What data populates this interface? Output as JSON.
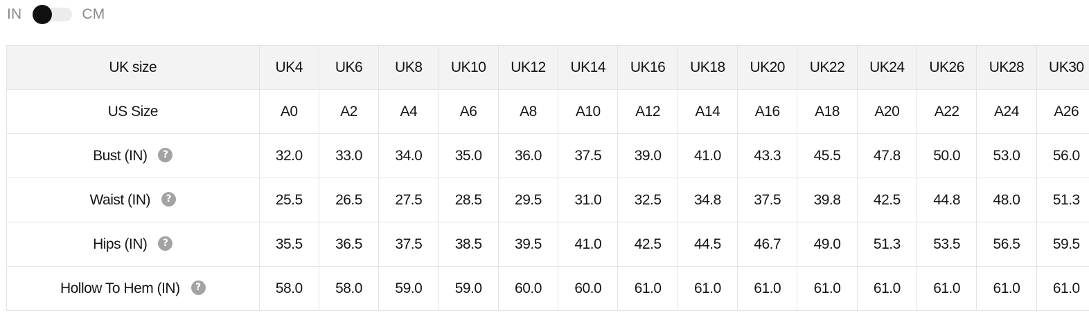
{
  "unit_toggle": {
    "left_label": "IN",
    "right_label": "CM",
    "selected": "IN"
  },
  "table": {
    "header": {
      "label": "UK size",
      "values": [
        "UK4",
        "UK6",
        "UK8",
        "UK10",
        "UK12",
        "UK14",
        "UK16",
        "UK18",
        "UK20",
        "UK22",
        "UK24",
        "UK26",
        "UK28",
        "UK30"
      ]
    },
    "rows": [
      {
        "key": "us-size",
        "label": "US Size",
        "help": false,
        "values": [
          "A0",
          "A2",
          "A4",
          "A6",
          "A8",
          "A10",
          "A12",
          "A14",
          "A16",
          "A18",
          "A20",
          "A22",
          "A24",
          "A26"
        ]
      },
      {
        "key": "bust",
        "label": "Bust (IN)",
        "help": true,
        "values": [
          "32.0",
          "33.0",
          "34.0",
          "35.0",
          "36.0",
          "37.5",
          "39.0",
          "41.0",
          "43.3",
          "45.5",
          "47.8",
          "50.0",
          "53.0",
          "56.0"
        ]
      },
      {
        "key": "waist",
        "label": "Waist (IN)",
        "help": true,
        "values": [
          "25.5",
          "26.5",
          "27.5",
          "28.5",
          "29.5",
          "31.0",
          "32.5",
          "34.8",
          "37.5",
          "39.8",
          "42.5",
          "44.8",
          "48.0",
          "51.3"
        ]
      },
      {
        "key": "hips",
        "label": "Hips (IN)",
        "help": true,
        "values": [
          "35.5",
          "36.5",
          "37.5",
          "38.5",
          "39.5",
          "41.0",
          "42.5",
          "44.5",
          "46.7",
          "49.0",
          "51.3",
          "53.5",
          "56.5",
          "59.5"
        ]
      },
      {
        "key": "hollow-to-hem",
        "label": "Hollow To Hem (IN)",
        "help": true,
        "values": [
          "58.0",
          "58.0",
          "59.0",
          "59.0",
          "60.0",
          "60.0",
          "61.0",
          "61.0",
          "61.0",
          "61.0",
          "61.0",
          "61.0",
          "61.0",
          "61.0"
        ]
      }
    ],
    "help_icon": {
      "name": "question-circle-icon",
      "glyph": "?"
    }
  },
  "colors": {
    "header_bg": "#f3f3f3",
    "border": "#e3e3e3",
    "toggle_knob": "#111111",
    "toggle_track": "#ececec",
    "help_icon_bg": "#a3a3a3",
    "muted_text": "#8a8a8a"
  }
}
